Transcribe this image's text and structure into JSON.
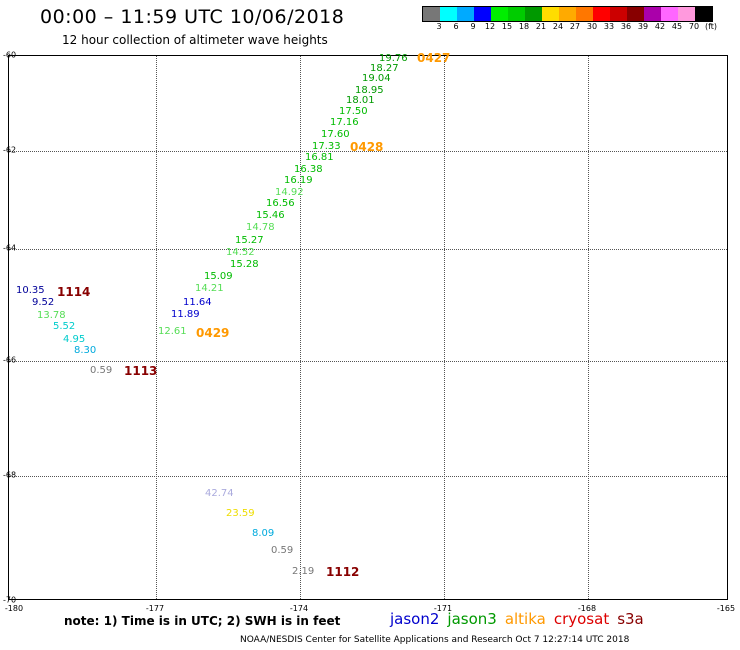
{
  "header": {
    "title": "00:00 – 11:59 UTC 10/06/2018",
    "subtitle": "12 hour collection of altimeter wave heights"
  },
  "colorbar": {
    "swatches": [
      "#777777",
      "#00ffff",
      "#00aaff",
      "#0000ff",
      "#00ee00",
      "#00cc00",
      "#009900",
      "#ffdd00",
      "#ffaa00",
      "#ff7700",
      "#ff0000",
      "#cc0000",
      "#880000",
      "#aa00aa",
      "#ff66ff",
      "#ff99dd",
      "#000000"
    ],
    "labels": [
      "3",
      "6",
      "9",
      "12",
      "15",
      "18",
      "21",
      "24",
      "27",
      "30",
      "33",
      "36",
      "39",
      "42",
      "45",
      "70",
      "(ft)"
    ]
  },
  "map": {
    "lon_ticks": [
      "-180",
      "-177",
      "-174",
      "-171",
      "-168",
      "-165"
    ],
    "lat_ticks": [
      "-60",
      "-62",
      "-64",
      "-66",
      "-68",
      "-70"
    ]
  },
  "observations": [
    {
      "text": "19.76",
      "color": "#009900"
    },
    {
      "text": "18.27",
      "color": "#009900"
    },
    {
      "text": "19.04",
      "color": "#009900"
    },
    {
      "text": "18.95",
      "color": "#009900"
    },
    {
      "text": "18.01",
      "color": "#009900"
    },
    {
      "text": "17.50",
      "color": "#00bb00"
    },
    {
      "text": "17.16",
      "color": "#00bb00"
    },
    {
      "text": "17.60",
      "color": "#00bb00"
    },
    {
      "text": "17.33",
      "color": "#00bb00"
    },
    {
      "text": "16.81",
      "color": "#00bb00"
    },
    {
      "text": "16.38",
      "color": "#00bb00"
    },
    {
      "text": "16.19",
      "color": "#00bb00"
    },
    {
      "text": "14.92",
      "color": "#55dd55"
    },
    {
      "text": "16.56",
      "color": "#00bb00"
    },
    {
      "text": "15.46",
      "color": "#00bb00"
    },
    {
      "text": "14.78",
      "color": "#55dd55"
    },
    {
      "text": "15.27",
      "color": "#00bb00"
    },
    {
      "text": "14.52",
      "color": "#55dd55"
    },
    {
      "text": "15.28",
      "color": "#00bb00"
    },
    {
      "text": "15.09",
      "color": "#00bb00"
    },
    {
      "text": "14.21",
      "color": "#55dd55"
    },
    {
      "text": "11.64",
      "color": "#0000cc"
    },
    {
      "text": "11.89",
      "color": "#0000cc"
    },
    {
      "text": "12.61",
      "color": "#55dd55"
    },
    {
      "text": "10.35",
      "color": "#000099"
    },
    {
      "text": "9.52",
      "color": "#000099"
    },
    {
      "text": "13.78",
      "color": "#55dd55"
    },
    {
      "text": "5.52",
      "color": "#00cccc"
    },
    {
      "text": "4.95",
      "color": "#00cccc"
    },
    {
      "text": "8.30",
      "color": "#00aadd"
    },
    {
      "text": "0.59",
      "color": "#777777"
    },
    {
      "text": "42.74",
      "color": "#aaaadd"
    },
    {
      "text": "23.59",
      "color": "#eedd00"
    },
    {
      "text": "8.09",
      "color": "#00aadd"
    },
    {
      "text": "0.59",
      "color": "#777777"
    },
    {
      "text": "2.19",
      "color": "#777777"
    }
  ],
  "time_labels": [
    {
      "text": "0427",
      "color": "#ff9900"
    },
    {
      "text": "0428",
      "color": "#ff9900"
    },
    {
      "text": "0429",
      "color": "#ff9900"
    },
    {
      "text": "1114",
      "color": "#880000"
    },
    {
      "text": "1113",
      "color": "#880000"
    },
    {
      "text": "1112",
      "color": "#880000"
    }
  ],
  "footer": {
    "note": "note: 1) Time is in UTC; 2) SWH is in feet",
    "legend": [
      {
        "text": "jason2",
        "color": "#0000cc"
      },
      {
        "text": "jason3",
        "color": "#009900"
      },
      {
        "text": "altika",
        "color": "#ff9900"
      },
      {
        "text": "cryosat",
        "color": "#dd0000"
      },
      {
        "text": "s3a",
        "color": "#880000"
      }
    ],
    "credit": "NOAA/NESDIS Center for Satellite Applications and Research    Oct  7 12:27:14 UTC 2018"
  }
}
